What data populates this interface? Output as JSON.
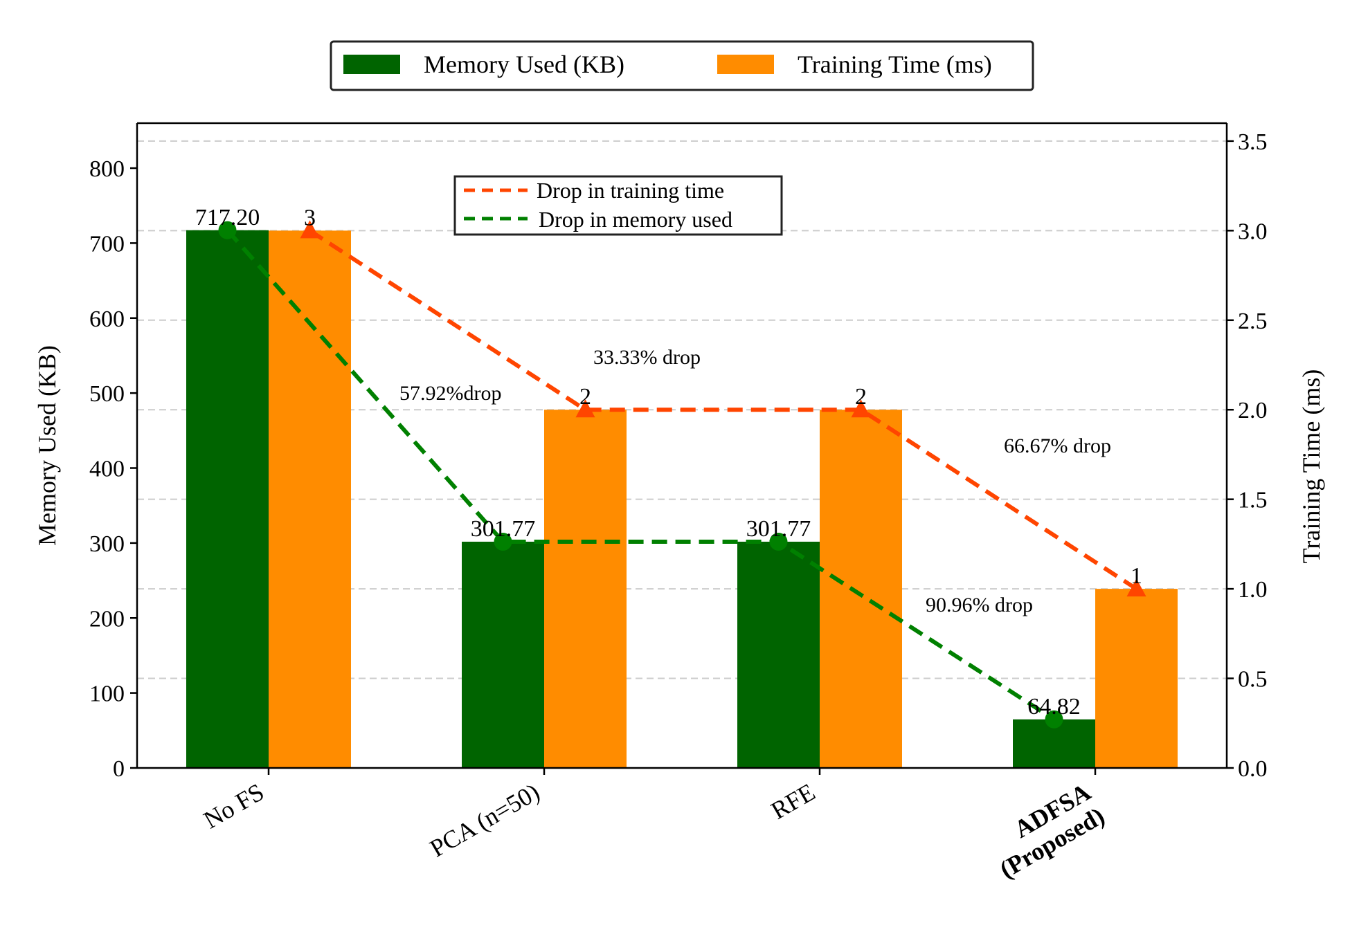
{
  "chart_data": {
    "type": "bar",
    "categories": [
      "No FS",
      "PCA (n=50)",
      "RFE",
      "ADFSA\n(Proposed)"
    ],
    "highlight_category": "ADFSA\n(Proposed)",
    "series": [
      {
        "name": "Memory Used (KB)",
        "axis": "left",
        "color": "#006400",
        "values": [
          717.2,
          301.77,
          301.77,
          64.82
        ],
        "labels": [
          "717.20",
          "301.77",
          "301.77",
          "64.82"
        ]
      },
      {
        "name": "Training Time (ms)",
        "axis": "right",
        "color": "#ff8c00",
        "values": [
          3,
          2,
          2,
          1
        ],
        "labels": [
          "3",
          "2",
          "2",
          "1"
        ]
      }
    ],
    "lines": [
      {
        "name": "Drop in training time",
        "axis": "right",
        "color": "#ff4500",
        "marker": "triangle",
        "values": [
          3,
          2,
          2,
          1
        ]
      },
      {
        "name": "Drop in memory used",
        "axis": "left",
        "color": "#008000",
        "marker": "circle",
        "values": [
          717.2,
          301.77,
          301.77,
          64.82
        ]
      }
    ],
    "annotations": [
      {
        "text": "57.92%drop"
      },
      {
        "text": "33.33% drop"
      },
      {
        "text": "66.67% drop"
      },
      {
        "text": "90.96% drop"
      }
    ],
    "ylabel_left": "Memory Used (KB)",
    "ylabel_right": "Training Time (ms)",
    "ylim_left": [
      0,
      860
    ],
    "ylim_right": [
      0,
      3.6
    ],
    "yticks_left": [
      "0",
      "100",
      "200",
      "300",
      "400",
      "500",
      "600",
      "700",
      "800"
    ],
    "yticks_right": [
      "0.0",
      "0.5",
      "1.0",
      "1.5",
      "2.0",
      "2.5",
      "3.0",
      "3.5"
    ],
    "grid": true,
    "legend_top": [
      "Memory Used (KB)",
      "Training Time (ms)"
    ],
    "legend_inner": [
      "Drop in training time",
      "Drop in memory used"
    ]
  }
}
